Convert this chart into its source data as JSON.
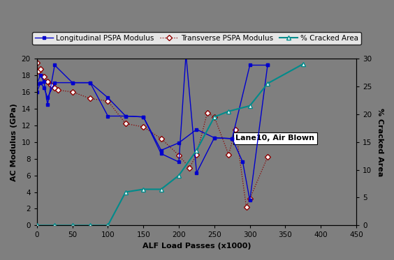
{
  "background_color": "#7f7f7f",
  "plot_bg_color": "#7f7f7f",
  "fig_bg_color": "#7f7f7f",
  "long1_x": [
    0,
    5,
    10,
    15,
    25,
    50,
    75,
    100,
    125,
    150,
    175,
    200,
    210,
    225,
    250,
    275,
    290,
    300,
    325
  ],
  "long1_y": [
    17.0,
    18.0,
    17.2,
    14.5,
    19.2,
    17.1,
    17.1,
    13.1,
    13.1,
    13.0,
    8.6,
    7.6,
    20.5,
    6.3,
    10.5,
    10.4,
    7.6,
    3.0,
    19.2
  ],
  "long2_x": [
    0,
    5,
    10,
    15,
    25,
    50,
    75,
    100,
    125,
    150,
    175,
    200,
    225,
    250,
    275,
    300,
    325
  ],
  "long2_y": [
    16.0,
    17.1,
    16.5,
    15.3,
    17.1,
    17.1,
    17.1,
    15.3,
    13.1,
    13.0,
    9.0,
    9.9,
    11.5,
    10.5,
    10.4,
    19.2,
    19.2
  ],
  "trans_x": [
    0,
    2,
    5,
    10,
    15,
    20,
    25,
    30,
    50,
    75,
    100,
    125,
    150,
    175,
    200,
    215,
    225,
    240,
    250,
    270,
    280,
    295,
    300,
    325
  ],
  "trans_y": [
    19.5,
    18.5,
    18.7,
    17.8,
    17.2,
    16.8,
    16.5,
    16.2,
    16.0,
    15.2,
    14.9,
    12.2,
    11.8,
    10.4,
    8.4,
    6.9,
    8.5,
    13.5,
    13.0,
    8.5,
    11.5,
    2.2,
    3.2,
    8.2
  ],
  "crack_x": [
    0,
    25,
    50,
    75,
    100,
    125,
    150,
    175,
    200,
    225,
    250,
    270,
    300,
    325,
    375
  ],
  "crack_y": [
    0,
    0,
    0,
    0,
    0,
    6.0,
    6.5,
    6.5,
    9.0,
    13.5,
    19.5,
    20.5,
    21.5,
    25.5,
    29.0
  ],
  "long_color": "#0000CD",
  "trans_color": "#8B0000",
  "crack_color": "#008B8B",
  "xlabel": "ALF Load Passes (x1000)",
  "ylabel_left": "AC Modulus (GPa)",
  "ylabel_right": "% Cracked Area",
  "xlim": [
    0,
    450
  ],
  "ylim_left": [
    0,
    20
  ],
  "ylim_right": [
    0,
    30
  ],
  "annotation": "Lane10, Air Blown",
  "ann_x": 280,
  "ann_y": 10.2,
  "legend_long": "Longitudinal PSPA Modulus",
  "legend_trans": "Transverse PSPA Modulus",
  "legend_crack": "% Cracked Area"
}
